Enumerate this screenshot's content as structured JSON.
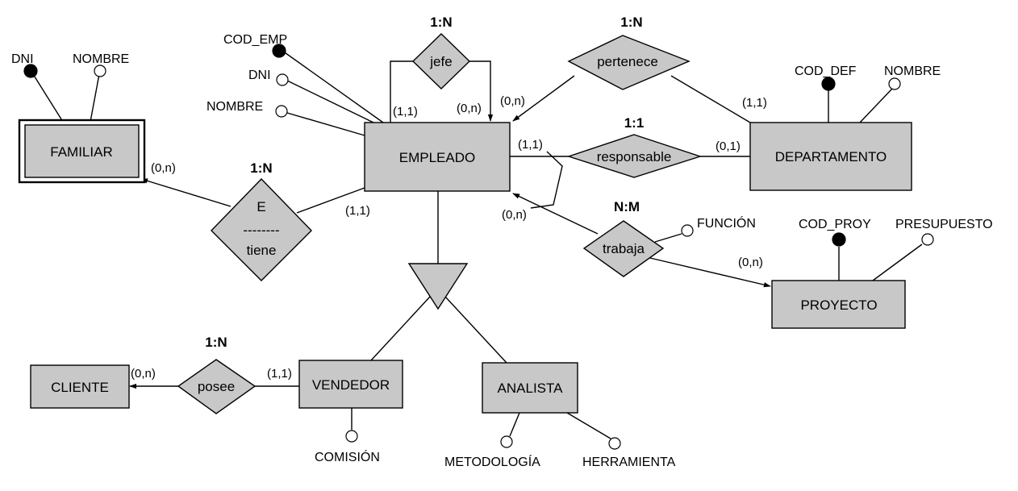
{
  "entities": {
    "familiar": "FAMILIAR",
    "empleado": "EMPLEADO",
    "departamento": "DEPARTAMENTO",
    "proyecto": "PROYECTO",
    "cliente": "CLIENTE",
    "vendedor": "VENDEDOR",
    "analista": "ANALISTA"
  },
  "relationships": {
    "jefe": "jefe",
    "pertenece": "pertenece",
    "responsable": "responsable",
    "trabaja": "trabaja",
    "posee": "posee",
    "tiene_top": "E",
    "tiene_dash": "--------",
    "tiene_bottom": "tiene"
  },
  "ratios": {
    "jefe": "1:N",
    "pertenece": "1:N",
    "responsable": "1:1",
    "tiene": "1:N",
    "trabaja": "N:M",
    "posee": "1:N"
  },
  "attributes": {
    "familiar_dni": "DNI",
    "familiar_nombre": "NOMBRE",
    "empleado_cod": "COD_EMP",
    "empleado_dni": "DNI",
    "empleado_nombre": "NOMBRE",
    "depto_cod": "COD_DEF",
    "depto_nombre": "NOMBRE",
    "proyecto_cod": "COD_PROY",
    "proyecto_presupuesto": "PRESUPUESTO",
    "trabaja_funcion": "FUNCIÓN",
    "vendedor_comision": "COMISIÓN",
    "analista_metodologia": "METODOLOGÍA",
    "analista_herramienta": "HERRAMIENTA"
  },
  "cardinalities": {
    "jefe_left": "(1,1)",
    "jefe_right": "(0,n)",
    "pertenece_emp": "(0,n)",
    "pertenece_dep": "(1,1)",
    "responsable_emp": "(1,1)",
    "responsable_dep": "(0,1)",
    "trabaja_emp": "(0,n)",
    "trabaja_proy": "(0,n)",
    "tiene_fam": "(0,n)",
    "tiene_emp": "(1,1)",
    "posee_cli": "(0,n)",
    "posee_vend": "(1,1)"
  }
}
